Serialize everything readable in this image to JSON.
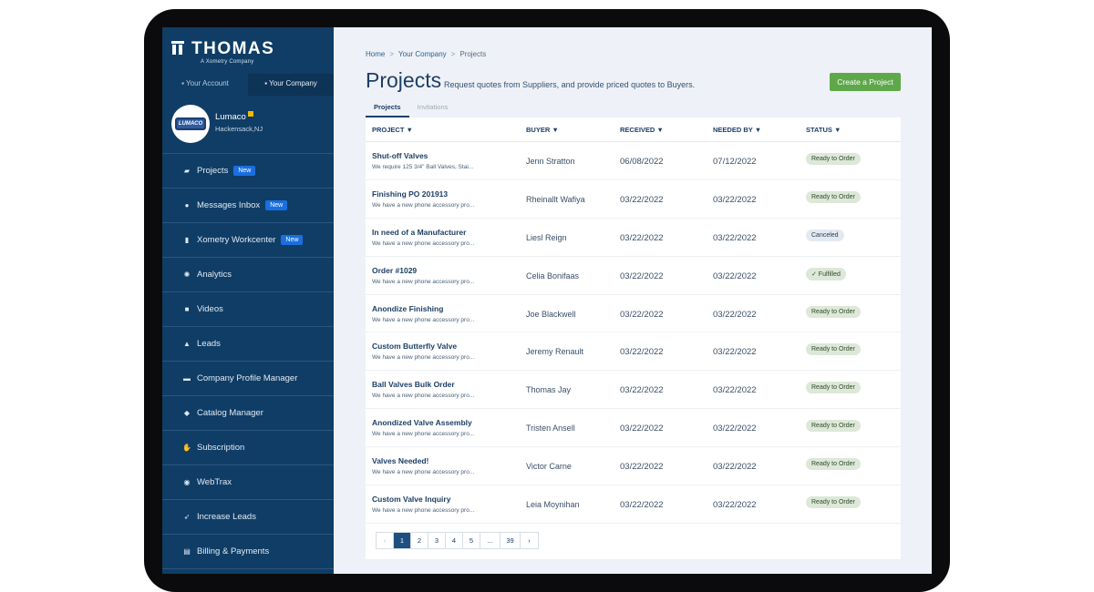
{
  "brand": {
    "name": "THOMAS",
    "tagline": "A Xometry Company"
  },
  "account_tabs": [
    "Your Account",
    "Your Company"
  ],
  "company": {
    "logo_text": "LUMACO",
    "name": "Lumaco",
    "location": "Hackensack,NJ"
  },
  "nav": [
    {
      "label": "Projects",
      "icon": "folder-icon",
      "glyph": "▰",
      "badge": "New"
    },
    {
      "label": "Messages Inbox",
      "icon": "chat-icon",
      "glyph": "●",
      "badge": "New"
    },
    {
      "label": "Xometry Workcenter",
      "icon": "clipboard-icon",
      "glyph": "▮",
      "badge": "New"
    },
    {
      "label": "Analytics",
      "icon": "analytics-icon",
      "glyph": "✺",
      "badge": ""
    },
    {
      "label": "Videos",
      "icon": "video-icon",
      "glyph": "■",
      "badge": ""
    },
    {
      "label": "Leads",
      "icon": "user-icon",
      "glyph": "▲",
      "badge": ""
    },
    {
      "label": "Company Profile Manager",
      "icon": "building-icon",
      "glyph": "▬",
      "badge": ""
    },
    {
      "label": "Catalog Manager",
      "icon": "tag-icon",
      "glyph": "◆",
      "badge": ""
    },
    {
      "label": "Subscription",
      "icon": "hand-icon",
      "glyph": "✋",
      "badge": ""
    },
    {
      "label": "WebTrax",
      "icon": "globe-icon",
      "glyph": "◉",
      "badge": ""
    },
    {
      "label": "Increase Leads",
      "icon": "rocket-icon",
      "glyph": "➶",
      "badge": ""
    },
    {
      "label": "Billing & Payments",
      "icon": "card-icon",
      "glyph": "▤",
      "badge": ""
    }
  ],
  "breadcrumb": [
    "Home",
    "Your Company",
    "Projects"
  ],
  "page": {
    "title": "Projects",
    "subtitle": "Request quotes from Suppliers, and provide priced quotes to Buyers.",
    "create_label": "Create a Project"
  },
  "tabs": [
    "Projects",
    "Invitations"
  ],
  "table": {
    "headers": [
      "PROJECT ▼",
      "BUYER ▼",
      "RECEIVED ▼",
      "NEEDED BY ▼",
      "STATUS ▼"
    ],
    "rows": [
      {
        "project": "Shut-off Valves",
        "desc": "We require 125 3/4\" Ball Valves, Stai...",
        "buyer": "Jenn Stratton",
        "received": "06/08/2022",
        "needed": "07/12/2022",
        "status": "Ready to Order"
      },
      {
        "project": "Finishing PO 201913",
        "desc": "We have a new phone accessory pro...",
        "buyer": "Rheinallt Wafiya",
        "received": "03/22/2022",
        "needed": "03/22/2022",
        "status": "Ready to Order"
      },
      {
        "project": "In need of a Manufacturer",
        "desc": "We have a new phone accessory pro...",
        "buyer": "Liesl Reign",
        "received": "03/22/2022",
        "needed": "03/22/2022",
        "status": "Canceled"
      },
      {
        "project": "Order #1029",
        "desc": "We have a new phone accessory pro...",
        "buyer": "Celia Bonifaas",
        "received": "03/22/2022",
        "needed": "03/22/2022",
        "status": "✓ Fulfilled"
      },
      {
        "project": "Anondize Finishing",
        "desc": "We have a new phone accessory pro...",
        "buyer": "Joe Blackwell",
        "received": "03/22/2022",
        "needed": "03/22/2022",
        "status": "Ready to Order"
      },
      {
        "project": "Custom Butterfly Valve",
        "desc": "We have a new phone accessory pro...",
        "buyer": "Jeremy Renault",
        "received": "03/22/2022",
        "needed": "03/22/2022",
        "status": "Ready to Order"
      },
      {
        "project": "Ball Valves Bulk Order",
        "desc": "We have a new phone accessory pro...",
        "buyer": "Thomas Jay",
        "received": "03/22/2022",
        "needed": "03/22/2022",
        "status": "Ready to Order"
      },
      {
        "project": "Anondized Valve Assembly",
        "desc": "We have a new phone accessory pro...",
        "buyer": "Tristen Ansell",
        "received": "03/22/2022",
        "needed": "03/22/2022",
        "status": "Ready to Order"
      },
      {
        "project": "Valves Needed!",
        "desc": "We have a new phone accessory pro...",
        "buyer": "Victor Carne",
        "received": "03/22/2022",
        "needed": "03/22/2022",
        "status": "Ready to Order"
      },
      {
        "project": "Custom Valve Inquiry",
        "desc": "We have a new phone accessory pro...",
        "buyer": "Leia Moynihan",
        "received": "03/22/2022",
        "needed": "03/22/2022",
        "status": "Ready to Order"
      }
    ]
  },
  "pagination": [
    "‹",
    "1",
    "2",
    "3",
    "4",
    "5",
    "...",
    "39",
    "›"
  ],
  "colors": {
    "sidebar": "#0f3d66",
    "accent_green": "#5fa84a",
    "badge_blue": "#1a6fe0",
    "title": "#1d3f66"
  }
}
